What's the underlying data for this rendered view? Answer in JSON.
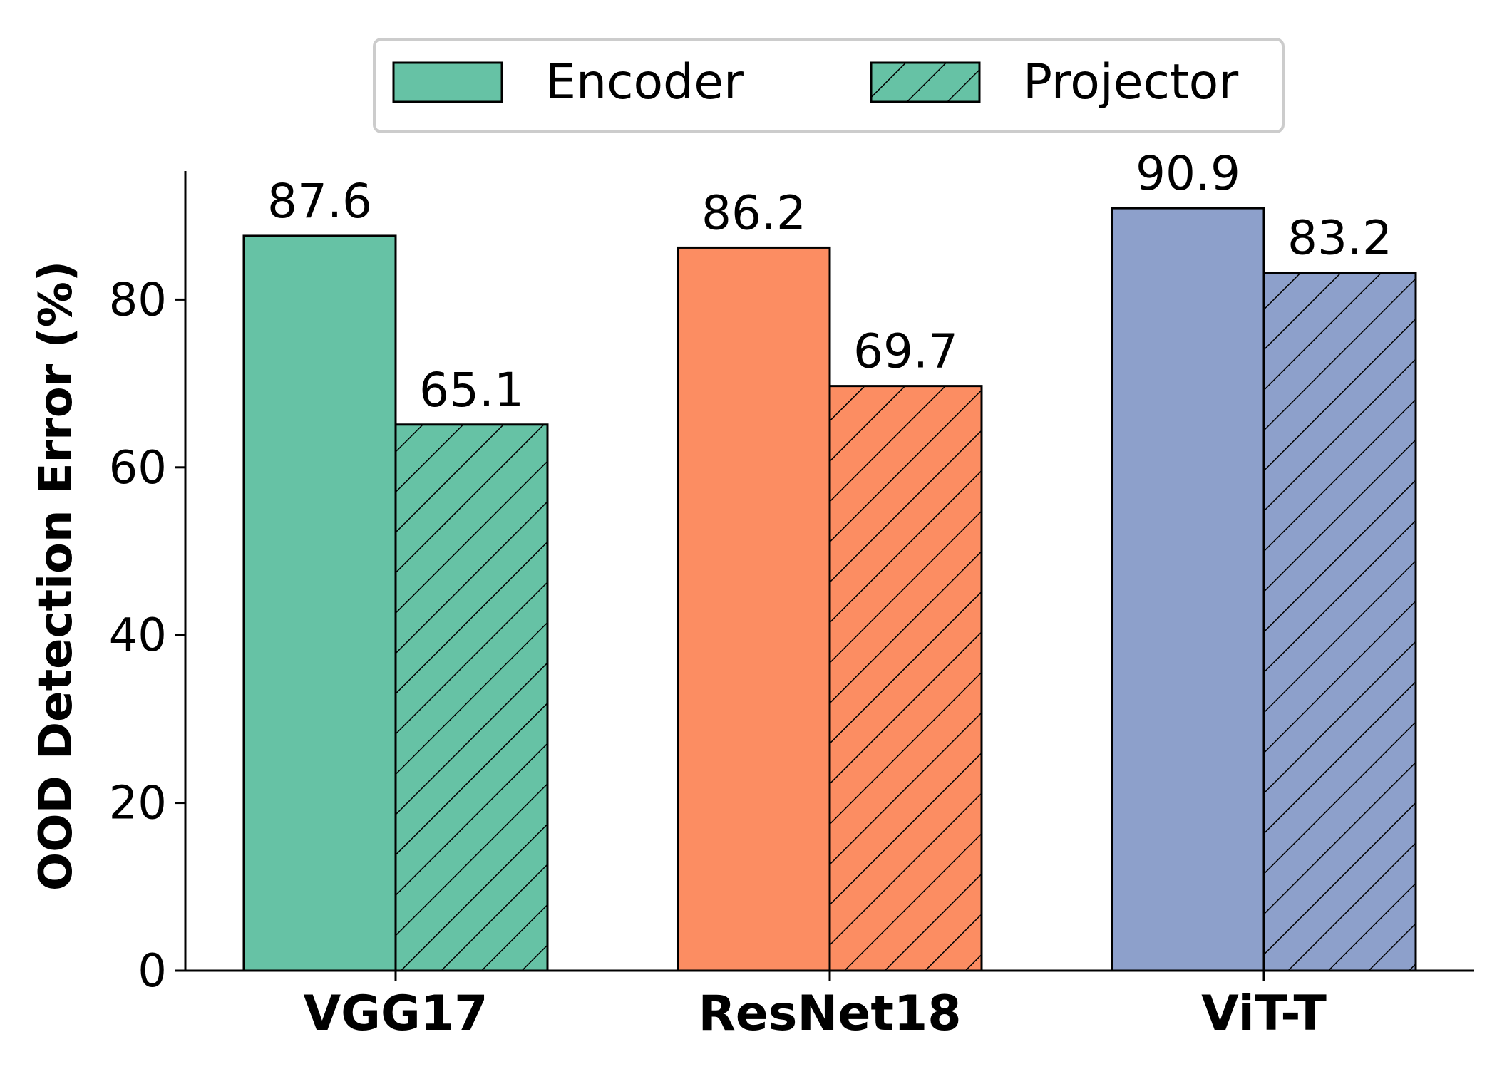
{
  "chart_data": {
    "type": "bar",
    "categories": [
      "VGG17",
      "ResNet18",
      "ViT-T"
    ],
    "series": [
      {
        "name": "Encoder",
        "values": [
          87.6,
          86.2,
          90.9
        ],
        "hatch": false
      },
      {
        "name": "Projector",
        "values": [
          65.1,
          69.7,
          83.2
        ],
        "hatch": true
      }
    ],
    "category_colors": [
      "#66c2a5",
      "#fc8d62",
      "#8da0cb"
    ],
    "legend_color": "#66c2a5",
    "xlabel": "",
    "ylabel": "OOD Detection Error (%)",
    "ylim": [
      0,
      95
    ],
    "yticks": [
      0,
      20,
      40,
      60,
      80
    ],
    "grid": false,
    "legend_position": "top-center"
  }
}
